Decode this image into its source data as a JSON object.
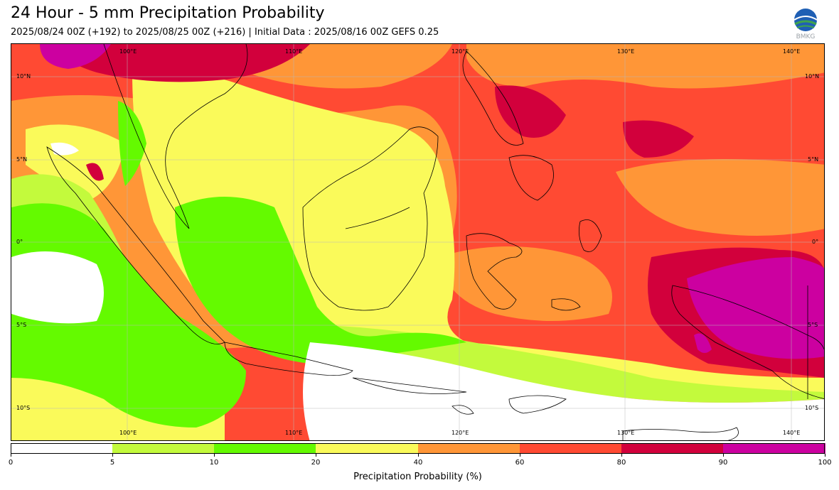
{
  "header": {
    "title": "24 Hour - 5 mm Precipitation Probability",
    "subtitle": "2025/08/24 00Z (+192) to 2025/08/25 00Z (+216) | Initial Data : 2025/08/16 00Z GEFS 0.25"
  },
  "logo": {
    "icon": "bmkg-logo",
    "text": "BMKG"
  },
  "map": {
    "lon_labels": [
      "100°E",
      "110°E",
      "120°E",
      "130°E",
      "140°E"
    ],
    "lat_labels": [
      "10°N",
      "5°N",
      "0°",
      "5°S",
      "10°S"
    ]
  },
  "colorbar": {
    "title": "Precipitation Probability (%)",
    "tick_labels": [
      "0",
      "5",
      "10",
      "20",
      "40",
      "60",
      "80",
      "90",
      "100"
    ],
    "colors": [
      "#ffffff",
      "#c3fa3c",
      "#64fa00",
      "#fafa5a",
      "#ff9637",
      "#ff4a33",
      "#d2003c",
      "#cc00a0"
    ]
  }
}
